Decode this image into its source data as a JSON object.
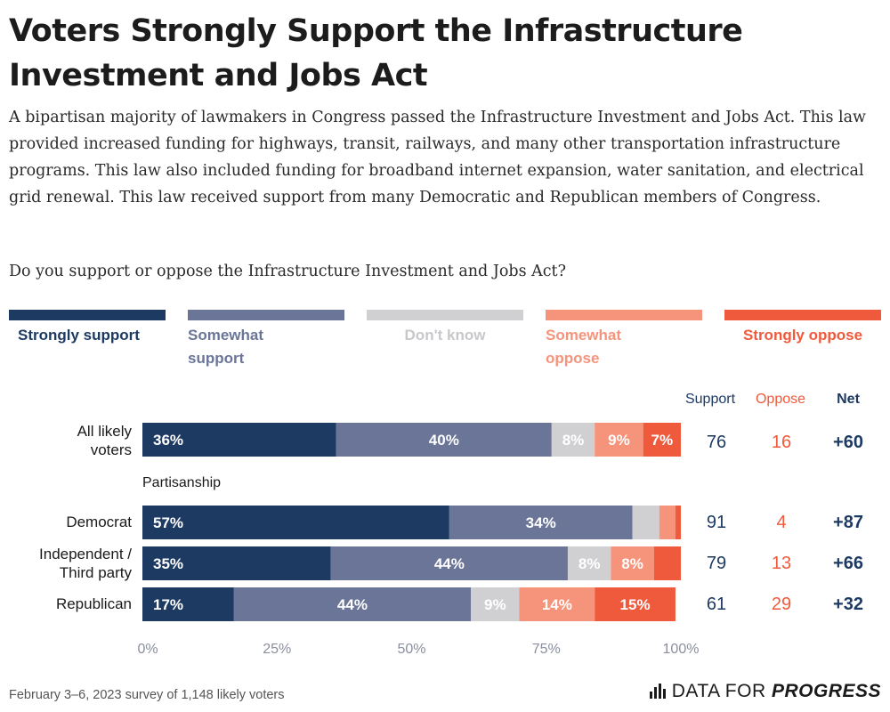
{
  "title_line1": "Voters Strongly Support the Infrastructure",
  "title_line2": "Investment and Jobs Act",
  "description": "A bipartisan majority of lawmakers in Congress passed the Infrastructure Investment and Jobs Act. This law provided increased funding for highways, transit, railways, and many other transportation infrastructure programs. This law also included funding for broadband internet expansion, water sanitation, and electrical grid renewal. This law received support from many Democratic and Republican members of Congress.",
  "question": "Do you support or oppose the Infrastructure Investment and Jobs Act?",
  "legend": [
    {
      "label": "Strongly support",
      "color": "#1d3a63"
    },
    {
      "label": "Somewhat support",
      "color": "#6b7598"
    },
    {
      "label": "Don't know",
      "color": "#d0d0d3"
    },
    {
      "label": "Somewhat oppose",
      "color": "#f6937b"
    },
    {
      "label": "Strongly oppose",
      "color": "#ef5a3c"
    }
  ],
  "headers": {
    "support": "Support",
    "oppose": "Oppose",
    "net": "Net"
  },
  "section_label": "Partisanship",
  "chart_data": {
    "type": "bar",
    "orientation": "horizontal-stacked",
    "categories": [
      "All likely voters",
      "Democrat",
      "Independent / Third party",
      "Republican"
    ],
    "series": [
      {
        "name": "Strongly support",
        "values": [
          36,
          57,
          35,
          17
        ],
        "labels": [
          "36%",
          "57%",
          "35%",
          "17%"
        ]
      },
      {
        "name": "Somewhat support",
        "values": [
          40,
          34,
          44,
          44
        ],
        "labels": [
          "40%",
          "34%",
          "44%",
          "44%"
        ]
      },
      {
        "name": "Don't know",
        "values": [
          8,
          5,
          8,
          9
        ],
        "labels": [
          "8%",
          "",
          "8%",
          "9%"
        ]
      },
      {
        "name": "Somewhat oppose",
        "values": [
          9,
          3,
          8,
          14
        ],
        "labels": [
          "9%",
          "",
          "8%",
          "14%"
        ]
      },
      {
        "name": "Strongly oppose",
        "values": [
          7,
          1,
          5,
          15
        ],
        "labels": [
          "7%",
          "",
          "",
          "15%"
        ]
      }
    ],
    "support": [
      "76",
      "91",
      "79",
      "61"
    ],
    "oppose": [
      "16",
      "4",
      "13",
      "29"
    ],
    "net": [
      "+60",
      "+87",
      "+66",
      "+32"
    ],
    "xticks": [
      "0%",
      "25%",
      "50%",
      "75%",
      "100%"
    ],
    "xlim": [
      0,
      100
    ]
  },
  "row_labels": [
    [
      "All likely",
      "voters"
    ],
    [
      "Democrat"
    ],
    [
      "Independent /",
      "Third party"
    ],
    [
      "Republican"
    ]
  ],
  "footer": {
    "source": "February 3–6, 2023 survey of 1,148 likely voters",
    "brand_regular": "DATA FOR ",
    "brand_bold": "PROGRESS"
  }
}
